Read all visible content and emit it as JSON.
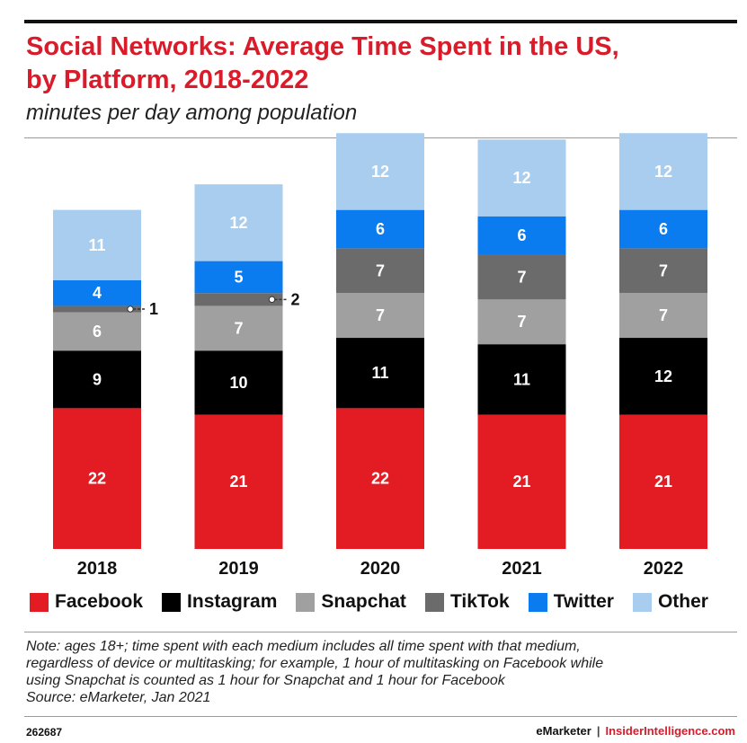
{
  "header": {
    "title_line1": "Social Networks: Average Time Spent in the US,",
    "title_line2": "by Platform, 2018-2022",
    "subtitle": "minutes per day among population"
  },
  "chart_data": {
    "type": "bar",
    "stacked": true,
    "title": "Social Networks: Average Time Spent in the US, by Platform, 2018-2022",
    "subtitle": "minutes per day among population",
    "categories": [
      "2018",
      "2019",
      "2020",
      "2021",
      "2022"
    ],
    "series": [
      {
        "name": "Facebook",
        "color": "#e31b23",
        "values": [
          22,
          21,
          22,
          21,
          21
        ]
      },
      {
        "name": "Instagram",
        "color": "#000000",
        "values": [
          9,
          10,
          11,
          11,
          12
        ]
      },
      {
        "name": "Snapchat",
        "color": "#a0a0a0",
        "values": [
          6,
          7,
          7,
          7,
          7
        ]
      },
      {
        "name": "TikTok",
        "color": "#6b6b6b",
        "values": [
          1,
          2,
          7,
          7,
          7
        ]
      },
      {
        "name": "Twitter",
        "color": "#0a7cf0",
        "values": [
          4,
          5,
          6,
          6,
          6
        ]
      },
      {
        "name": "Other",
        "color": "#a9cdee",
        "values": [
          11,
          12,
          12,
          12,
          12
        ]
      }
    ],
    "ylim": [
      0,
      66
    ],
    "xlabel": "",
    "ylabel": "",
    "legend_position": "bottom"
  },
  "footer": {
    "note_lines": [
      "Note: ages 18+; time spent with each medium includes all time spent with that medium,",
      "regardless of device or multitasking; for example, 1 hour of multitasking on Facebook while",
      "using Snapchat is counted as 1 hour for Snapchat and 1 hour for Facebook"
    ],
    "source": "Source: eMarketer, Jan 2021",
    "chart_id": "262687",
    "brand_left": "eMarketer",
    "brand_sep": "|",
    "brand_right": "InsiderIntelligence.com"
  }
}
